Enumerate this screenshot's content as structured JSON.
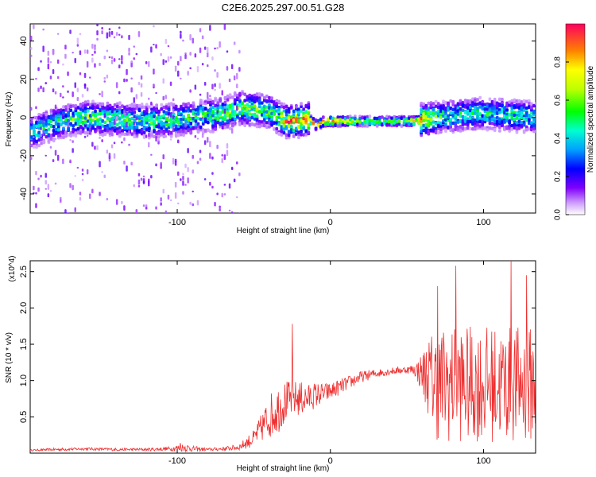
{
  "title": "C2E6.2025.297.00.51.G28",
  "chart_data": [
    {
      "type": "heatmap",
      "title": "C2E6.2025.297.00.51.G28",
      "xlabel": "Height of straight line (km)",
      "ylabel": "Frequency (Hz)",
      "xlim": [
        -196,
        134
      ],
      "ylim": [
        -50,
        49
      ],
      "xticks": [
        -100,
        0,
        100
      ],
      "xtick_labels": [
        "-100",
        "0",
        "100"
      ],
      "yticks": [
        -40,
        -20,
        0,
        20,
        40
      ],
      "ytick_labels": [
        "-40",
        "-20",
        "0",
        "20",
        "40"
      ],
      "colorbar": {
        "label": "Normalized spectral amplitude",
        "range": [
          0,
          1
        ],
        "ticks": [
          0.0,
          0.2,
          0.4,
          0.6,
          0.8
        ],
        "tick_labels": [
          "0.0",
          "0.2",
          "0.4",
          "0.6",
          "0.8"
        ]
      },
      "ridge": {
        "x": [
          -196,
          -180,
          -160,
          -140,
          -120,
          -100,
          -80,
          -70,
          -60,
          -50,
          -40,
          -35,
          -30,
          -25,
          -15,
          -10,
          -5,
          0,
          20,
          40,
          50,
          55,
          60,
          70,
          80,
          100,
          120,
          134
        ],
        "center_hz": [
          -8,
          -3,
          0,
          -1,
          -2,
          -1,
          1,
          2,
          5,
          4,
          3,
          0,
          -2,
          -2,
          -1,
          -4,
          -2,
          -2,
          -2,
          -2,
          -2,
          -2,
          -1,
          0,
          1,
          2,
          1,
          0
        ],
        "amplitude": [
          0.45,
          0.5,
          0.6,
          0.55,
          0.55,
          0.55,
          0.55,
          0.6,
          0.65,
          0.62,
          0.6,
          0.6,
          0.85,
          0.9,
          0.9,
          0.88,
          0.9,
          0.92,
          0.58,
          0.58,
          0.62,
          0.9,
          0.8,
          0.55,
          0.5,
          0.5,
          0.5,
          0.45
        ]
      }
    },
    {
      "type": "line",
      "xlabel": "Height of straight line (km)",
      "ylabel": "SNR (10 * v/v)",
      "y_multiplier": "(x10^4)",
      "xlim": [
        -196,
        134
      ],
      "ylim": [
        0,
        2.65
      ],
      "xticks": [
        -100,
        0,
        100
      ],
      "xtick_labels": [
        "-100",
        "0",
        "100"
      ],
      "yticks": [
        0.5,
        1.0,
        1.5,
        2.0,
        2.5
      ],
      "ytick_labels": [
        "0.5",
        "1.0",
        "1.5",
        "2.0",
        "2.5"
      ],
      "series": [
        {
          "name": "SNR",
          "color": "#ee3030",
          "x": [
            -196,
            -180,
            -160,
            -140,
            -120,
            -105,
            -95,
            -90,
            -80,
            -70,
            -60,
            -50,
            -45,
            -40,
            -35,
            -30,
            -25,
            -20,
            -15,
            -10,
            -5,
            0,
            10,
            20,
            30,
            40,
            50,
            55,
            60,
            65,
            70,
            80,
            90,
            100,
            110,
            120,
            134
          ],
          "y": [
            0.04,
            0.05,
            0.06,
            0.05,
            0.05,
            0.06,
            0.08,
            0.06,
            0.05,
            0.06,
            0.08,
            0.2,
            0.35,
            0.5,
            0.6,
            0.7,
            0.75,
            0.75,
            0.75,
            0.8,
            0.82,
            0.85,
            0.95,
            1.05,
            1.1,
            1.13,
            1.15,
            1.15,
            1.1,
            1.05,
            0.95,
            0.95,
            0.95,
            0.95,
            0.95,
            0.95,
            0.95
          ],
          "noise_amplitude": [
            0.01,
            0.02,
            0.02,
            0.02,
            0.02,
            0.03,
            0.06,
            0.04,
            0.02,
            0.03,
            0.04,
            0.12,
            0.2,
            0.3,
            0.35,
            0.3,
            0.25,
            0.25,
            0.2,
            0.18,
            0.15,
            0.12,
            0.1,
            0.08,
            0.06,
            0.05,
            0.05,
            0.08,
            0.3,
            0.6,
            0.8,
            0.8,
            0.8,
            0.8,
            0.8,
            0.8,
            0.8
          ],
          "spikes": [
            {
              "x": -25,
              "y": 1.78
            },
            {
              "x": -98,
              "y": 0.14
            },
            {
              "x": 82,
              "y": 2.58
            },
            {
              "x": 118,
              "y": 2.65
            },
            {
              "x": 70,
              "y": 2.3
            },
            {
              "x": 128,
              "y": 2.45
            }
          ]
        }
      ]
    }
  ]
}
